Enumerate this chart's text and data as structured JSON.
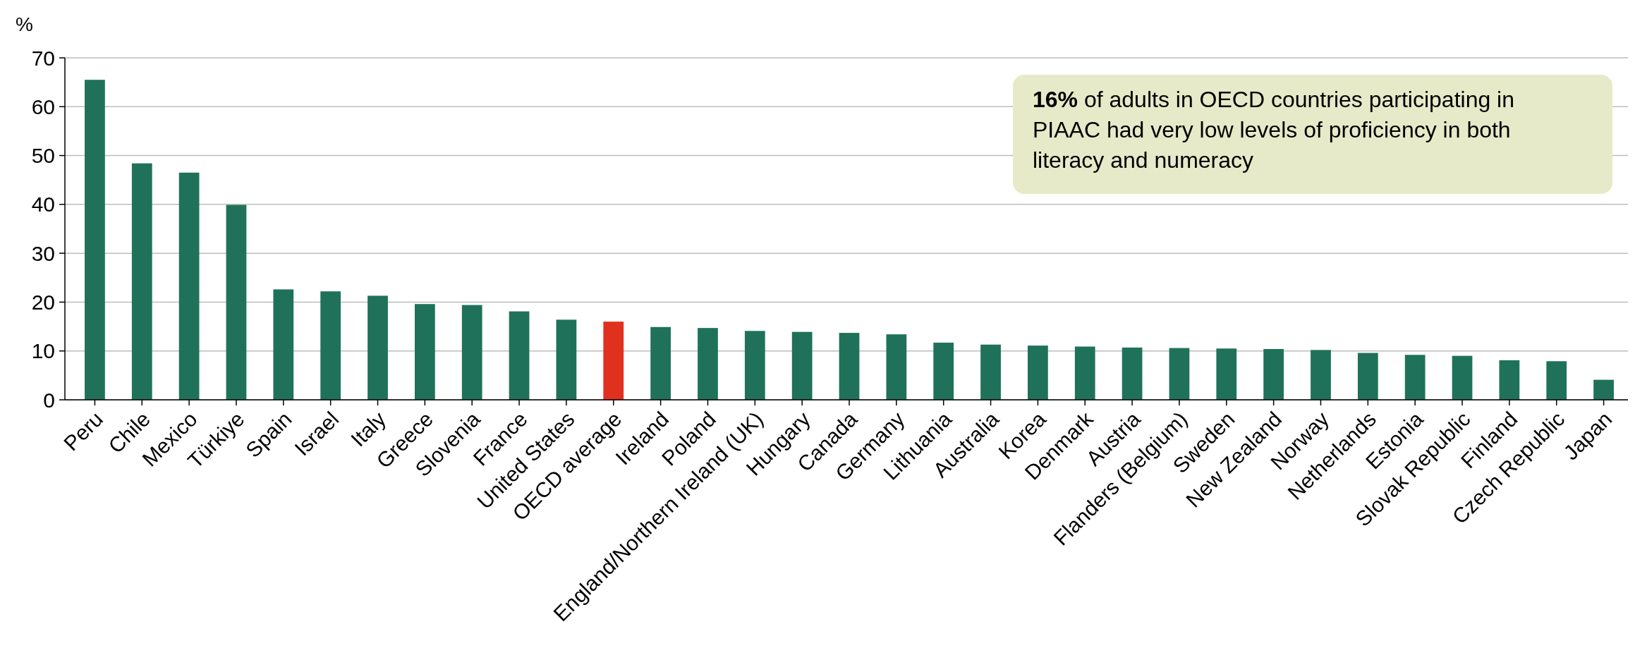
{
  "chart_data": {
    "type": "bar",
    "ylabel": "%",
    "categories": [
      "Peru",
      "Chile",
      "Mexico",
      "Türkiye",
      "Spain",
      "Israel",
      "Italy",
      "Greece",
      "Slovenia",
      "France",
      "United States",
      "OECD average",
      "Ireland",
      "Poland",
      "England/Northern Ireland (UK)",
      "Hungary",
      "Canada",
      "Germany",
      "Lithuania",
      "Australia",
      "Korea",
      "Denmark",
      "Austria",
      "Flanders (Belgium)",
      "Sweden",
      "New Zealand",
      "Norway",
      "Netherlands",
      "Estonia",
      "Slovak Republic",
      "Finland",
      "Czech Republic",
      "Japan"
    ],
    "values": [
      65.5,
      48.4,
      46.5,
      39.9,
      22.6,
      22.2,
      21.3,
      19.6,
      19.4,
      18.1,
      16.4,
      16,
      14.9,
      14.7,
      14.1,
      13.9,
      13.7,
      13.4,
      11.7,
      11.3,
      11.1,
      10.9,
      10.7,
      10.6,
      10.5,
      10.4,
      10.2,
      9.6,
      9.2,
      9.0,
      8.1,
      7.9,
      4.1
    ],
    "colors": [
      "#1f7259",
      "#1f7259",
      "#1f7259",
      "#1f7259",
      "#1f7259",
      "#1f7259",
      "#1f7259",
      "#1f7259",
      "#1f7259",
      "#1f7259",
      "#1f7259",
      "#e0301e",
      "#1f7259",
      "#1f7259",
      "#1f7259",
      "#1f7259",
      "#1f7259",
      "#1f7259",
      "#1f7259",
      "#1f7259",
      "#1f7259",
      "#1f7259",
      "#1f7259",
      "#1f7259",
      "#1f7259",
      "#1f7259",
      "#1f7259",
      "#1f7259",
      "#1f7259",
      "#1f7259",
      "#1f7259",
      "#1f7259",
      "#1f7259"
    ],
    "ylim": [
      0,
      70
    ],
    "yticks": [
      0,
      10,
      20,
      30,
      40,
      50,
      60,
      70
    ],
    "grid": "y",
    "annotations": [
      "16% of adults in OECD countries participating in PIAAC had very low levels of proficiency in both literacy and numeracy"
    ]
  }
}
